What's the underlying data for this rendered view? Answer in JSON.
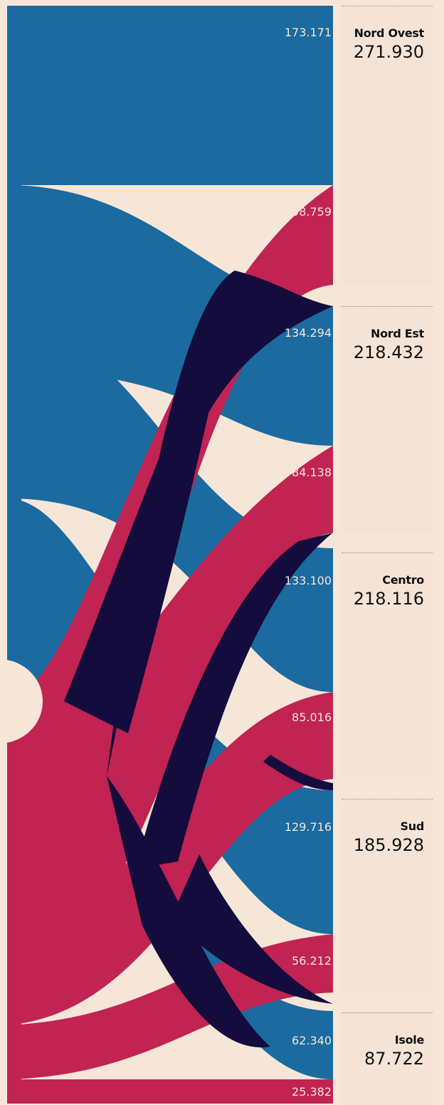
{
  "colors": {
    "background": "#f6e6d8",
    "panel": "#f5e4d6",
    "blue": "#1b6aa0",
    "red": "#c12352",
    "dark": "#130c3c"
  },
  "chart_data": {
    "type": "sankey",
    "regions": [
      {
        "name": "Nord Ovest",
        "total": "271.930",
        "blue": "173.171",
        "red": "98.759"
      },
      {
        "name": "Nord Est",
        "total": "218.432",
        "blue": "134.294",
        "red": "84.138"
      },
      {
        "name": "Centro",
        "total": "218.116",
        "blue": "133.100",
        "red": "85.016"
      },
      {
        "name": "Sud",
        "total": "185.928",
        "blue": "129.716",
        "red": "56.212"
      },
      {
        "name": "Isole",
        "total": "87.722",
        "blue": "62.340",
        "red": "25.382"
      }
    ]
  }
}
